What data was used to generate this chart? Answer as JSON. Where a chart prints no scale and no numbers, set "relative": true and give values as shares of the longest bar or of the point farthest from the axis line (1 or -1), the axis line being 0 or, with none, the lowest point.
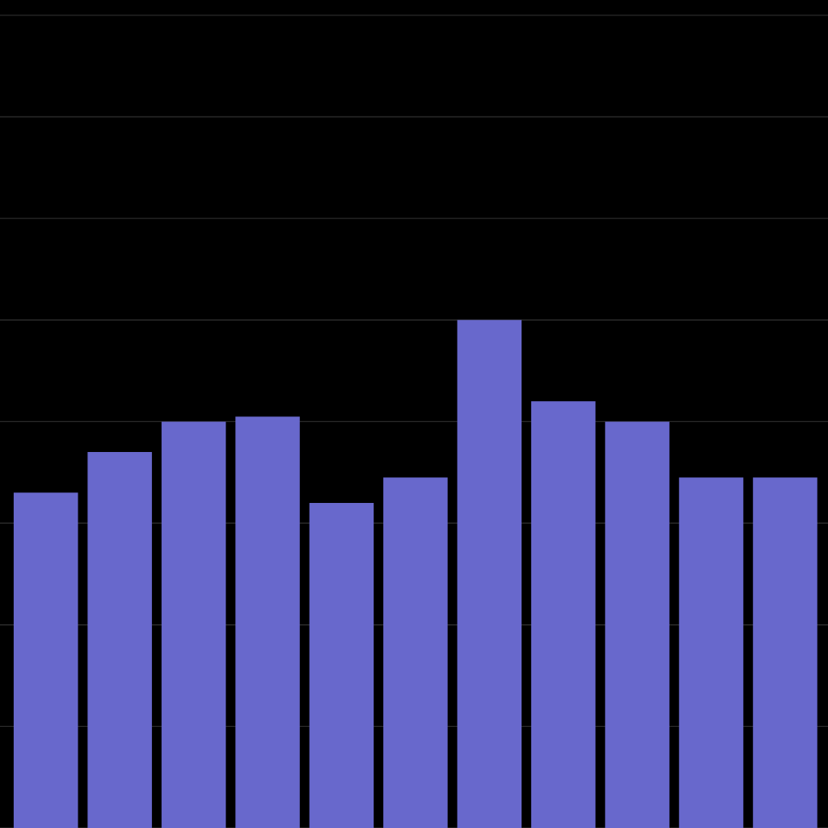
{
  "chart_data": {
    "type": "bar",
    "relative": true,
    "grid": true,
    "categories": [
      null,
      null,
      null,
      null,
      null,
      null,
      null,
      null,
      null,
      null,
      null
    ],
    "series": [
      {
        "color": "#6868cc",
        "values": [
          0.66,
          0.74,
          0.8,
          0.81,
          0.64,
          0.69,
          1,
          0.84,
          0.8,
          0.69,
          0.69
        ]
      }
    ]
  }
}
